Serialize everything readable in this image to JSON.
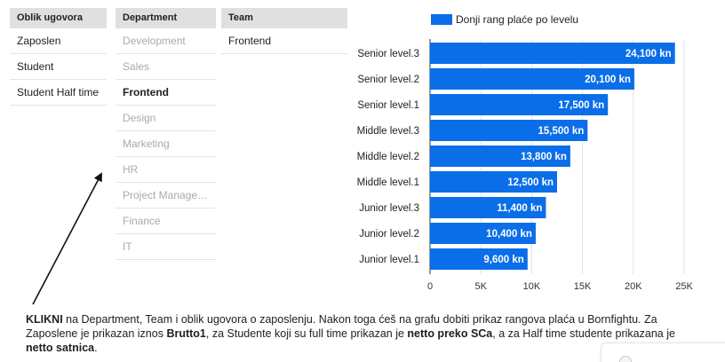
{
  "filters": {
    "oblik": {
      "title": "Oblik ugovora",
      "items": [
        {
          "label": "Zaposlen",
          "state": "avail"
        },
        {
          "label": "Student",
          "state": "avail"
        },
        {
          "label": "Student Half time",
          "state": "avail"
        }
      ]
    },
    "department": {
      "title": "Department",
      "items": [
        {
          "label": "Development",
          "state": "dim"
        },
        {
          "label": "Sales",
          "state": "dim"
        },
        {
          "label": "Frontend",
          "state": "selected"
        },
        {
          "label": "Design",
          "state": "dim"
        },
        {
          "label": "Marketing",
          "state": "dim"
        },
        {
          "label": "HR",
          "state": "dim"
        },
        {
          "label": "Project Management",
          "state": "dim"
        },
        {
          "label": "Finance",
          "state": "dim"
        },
        {
          "label": "IT",
          "state": "dim"
        }
      ]
    },
    "team": {
      "title": "Team",
      "items": [
        {
          "label": "Frontend",
          "state": "avail"
        }
      ]
    }
  },
  "chart_data": {
    "type": "bar",
    "orientation": "horizontal",
    "title": "",
    "xlabel": "",
    "ylabel": "",
    "categories": [
      "Senior level.3",
      "Senior level.2",
      "Senior level.1",
      "Middle level.3",
      "Middle level.2",
      "Middle level.1",
      "Junior level.3",
      "Junior level.2",
      "Junior level.1"
    ],
    "series": [
      {
        "name": "Donji rang plaće po levelu",
        "values": [
          24100,
          20100,
          17500,
          15500,
          13800,
          12500,
          11400,
          10400,
          9600
        ]
      }
    ],
    "data_labels": [
      "24,100 kn",
      "20,100 kn",
      "17,500 kn",
      "15,500 kn",
      "13,800 kn",
      "12,500 kn",
      "11,400 kn",
      "10,400 kn",
      "9,600 kn"
    ],
    "xlim": [
      0,
      25000
    ],
    "x_ticks": [
      0,
      5000,
      10000,
      15000,
      20000,
      25000
    ],
    "x_tick_labels": [
      "0",
      "5K",
      "10K",
      "15K",
      "20K",
      "25K"
    ],
    "grid": true,
    "legend": "top",
    "bar_color": "#0a6ee8"
  },
  "instructions": {
    "p1_bold": "KLIKNI",
    "p2": " na Department, Team i oblik ugovora o zaposlenju. Nakon toga ćeš na grafu dobiti prikaz rangova plaća u Bornfightu. Za Zaposlene je prikazan iznos ",
    "p3_bold": "Brutto1",
    "p4": ", za Studente koji su full time prikazan je ",
    "p5_bold": "netto preko SCa",
    "p6": ", a za Half time studente prikazana je ",
    "p7_bold": "netto satnica",
    "p8": "."
  }
}
